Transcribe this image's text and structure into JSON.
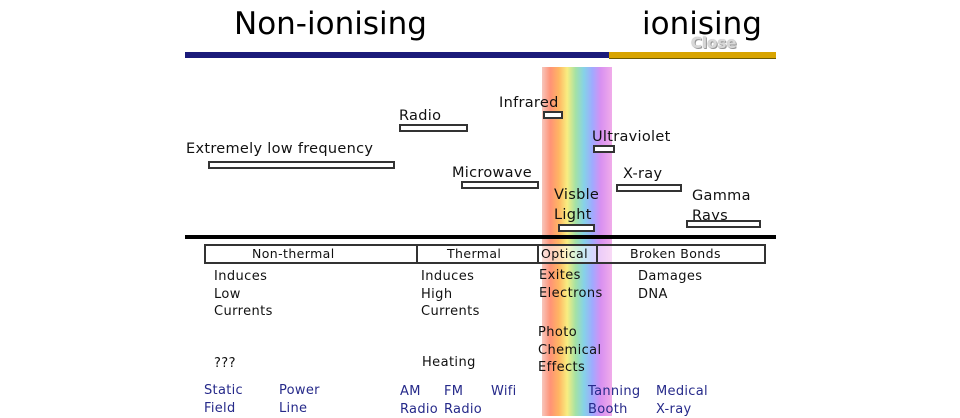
{
  "header": {
    "left_title": "Non-ionising",
    "right_title": "ionising",
    "overlay_text": "Close",
    "colors": {
      "non_ionising": "#1b1b7a",
      "ionising": "#d8a400"
    }
  },
  "spectrum_labels": {
    "elf": "Extremely low frequency",
    "radio": "Radio",
    "infrared": "Infrared",
    "microwave": "Microwave",
    "ultraviolet": "Ultraviolet",
    "xray": "X-ray",
    "visible": "Visble\nLight",
    "gamma": "Gamma\nRays"
  },
  "bands": {
    "non_thermal": "Non-thermal",
    "thermal": "Thermal",
    "optical": "Optical",
    "broken_bonds": "Broken Bonds"
  },
  "effects": {
    "non_thermal_1": "Induces\nLow\nCurrents",
    "non_thermal_2": "???",
    "thermal_1": "Induces\nHigh\nCurrents",
    "thermal_2": "Heating",
    "optical_1": "Exites\nElectrons",
    "optical_2": "Photo\nChemical\nEffects",
    "broken_1": "Damages\nDNA"
  },
  "applications": {
    "static": "Static\nField",
    "power": "Power\nLine",
    "am": "AM\nRadio",
    "fm": "FM\nRadio",
    "wifi": "Wifi",
    "tanning": "Tanning\nBooth",
    "medical": "Medical\nX-ray",
    "color": "#262a8a"
  }
}
